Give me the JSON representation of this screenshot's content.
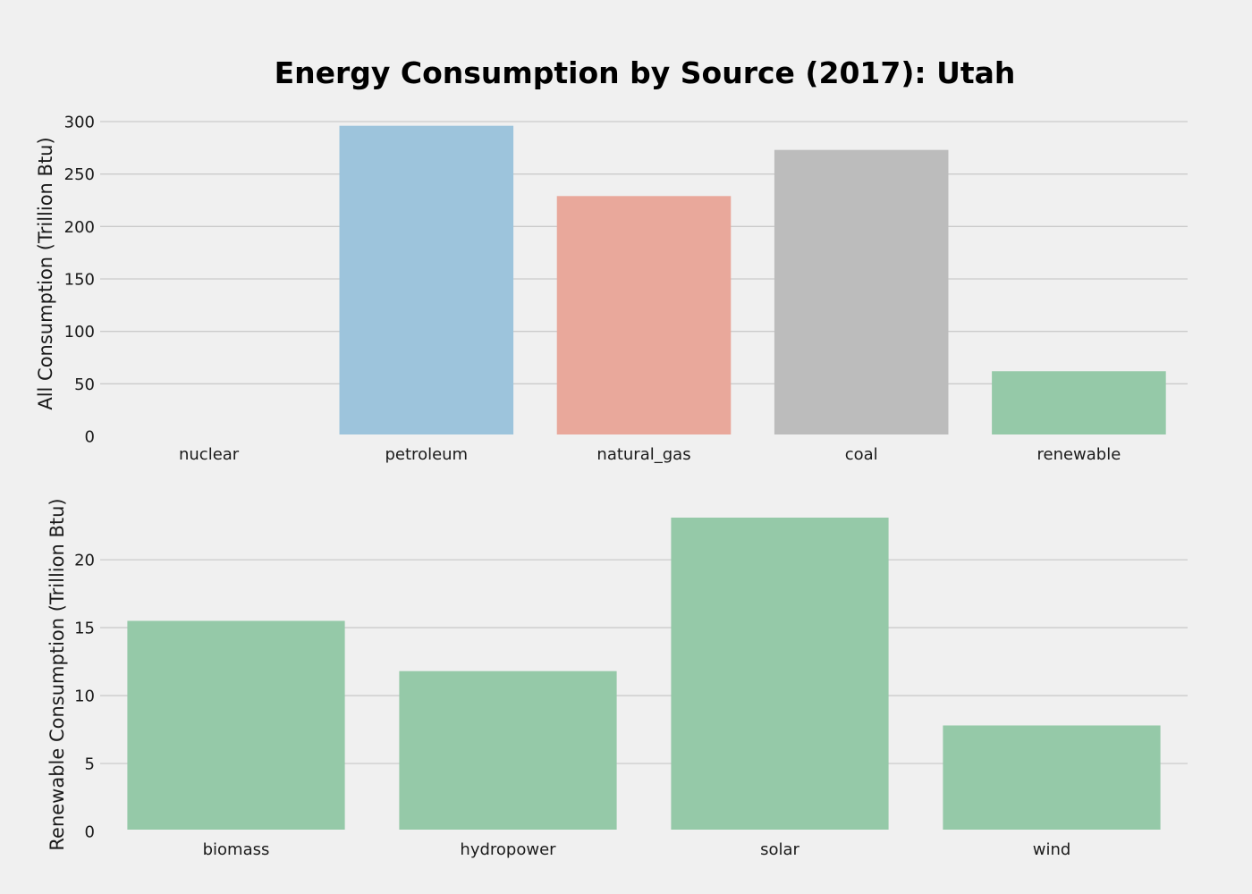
{
  "title": "Energy Consumption by Source (2017): Utah",
  "chart_data": [
    {
      "type": "bar",
      "title": "Energy Consumption by Source (2017): Utah",
      "xlabel": "",
      "ylabel": "All Consumption (Trillion Btu)",
      "categories": [
        "nuclear",
        "petroleum",
        "natural_gas",
        "coal",
        "renewable"
      ],
      "values": [
        0,
        296,
        229,
        273,
        62
      ],
      "colors": [
        "#30a2da",
        "#30a2da",
        "#fc4f30",
        "#8b8b8b",
        "#6d904f"
      ],
      "bar_colors": [
        "#9dc4dc",
        "#9dc4dc",
        "#e9a89b",
        "#bcbcbc",
        "#95c9a8"
      ],
      "ylim": [
        0,
        300
      ],
      "yticks": [
        0,
        50,
        100,
        150,
        200,
        250,
        300
      ],
      "grid": true
    },
    {
      "type": "bar",
      "title": "",
      "xlabel": "",
      "ylabel": "Renewable Consumption (Trillion Btu)",
      "categories": [
        "biomass",
        "hydropower",
        "solar",
        "wind"
      ],
      "values": [
        15.5,
        11.8,
        23.1,
        7.8
      ],
      "bar_colors": [
        "#95c9a8",
        "#95c9a8",
        "#95c9a8",
        "#95c9a8"
      ],
      "ylim": [
        0,
        23.1
      ],
      "yticks": [
        0,
        5,
        10,
        15,
        20
      ],
      "grid": true
    }
  ]
}
